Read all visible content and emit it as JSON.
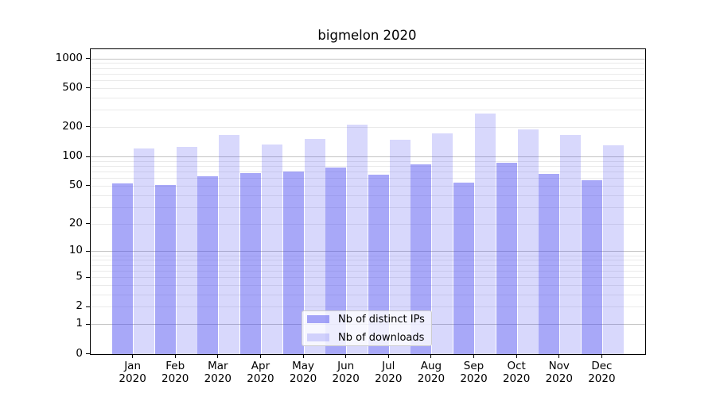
{
  "title": "bigmelon 2020",
  "chart_data": {
    "type": "bar",
    "title": "bigmelon 2020",
    "categories": [
      "Jan",
      "Feb",
      "Mar",
      "Apr",
      "May",
      "Jun",
      "Jul",
      "Aug",
      "Sep",
      "Oct",
      "Nov",
      "Dec"
    ],
    "x_tick_year": "2020",
    "series": [
      {
        "name": "Nb of distinct IPs",
        "color": "rgba(70,70,240,0.47)",
        "values": [
          53,
          51,
          63,
          68,
          71,
          77,
          66,
          84,
          54,
          87,
          67,
          57
        ]
      },
      {
        "name": "Nb of downloads",
        "color": "rgba(70,70,240,0.21)",
        "values": [
          122,
          126,
          167,
          133,
          152,
          214,
          150,
          175,
          275,
          190,
          166,
          132
        ]
      }
    ],
    "yscale": "log1p",
    "y_ticks": [
      0,
      1,
      2,
      5,
      10,
      20,
      50,
      100,
      200,
      500,
      1000
    ],
    "ylim": [
      0,
      1250
    ],
    "grid": true,
    "grid_major_color": "#c3c3c3",
    "grid_minor_color": "#eaeaea",
    "legend_position": "lower center"
  },
  "legend": {
    "items": [
      {
        "label": "Nb of distinct IPs"
      },
      {
        "label": "Nb of downloads"
      }
    ]
  }
}
